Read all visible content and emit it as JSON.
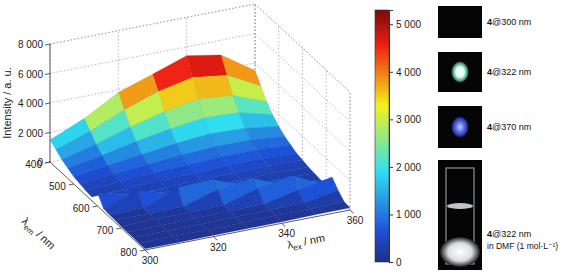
{
  "chart_data": {
    "type": "surface",
    "x_label": "λex / nm",
    "y_label": "λem / nm",
    "z_label": "Intensity / a. u.",
    "x": [
      300,
      310,
      320,
      330,
      340,
      350,
      360
    ],
    "y": [
      400,
      425,
      450,
      475,
      500,
      525,
      550,
      575,
      600,
      625,
      650,
      675,
      700,
      725,
      750,
      775,
      800
    ],
    "values": [
      [
        1500,
        2500,
        3800,
        4600,
        5400,
        5000,
        3500
      ],
      [
        1200,
        2000,
        3000,
        3800,
        4300,
        4000,
        2800
      ],
      [
        900,
        1500,
        2200,
        2800,
        3200,
        3000,
        2100
      ],
      [
        700,
        1100,
        1600,
        2000,
        2300,
        2200,
        1600
      ],
      [
        500,
        800,
        1100,
        1400,
        1600,
        1500,
        1200
      ],
      [
        400,
        600,
        800,
        1000,
        1100,
        1100,
        900
      ],
      [
        300,
        450,
        600,
        700,
        800,
        800,
        700
      ],
      [
        250,
        350,
        450,
        500,
        600,
        600,
        500
      ],
      [
        900,
        300,
        350,
        400,
        450,
        450,
        400
      ],
      [
        200,
        1000,
        300,
        300,
        350,
        350,
        300
      ],
      [
        150,
        200,
        1100,
        1200,
        300,
        300,
        250
      ],
      [
        150,
        150,
        200,
        900,
        1200,
        250,
        200
      ],
      [
        100,
        150,
        150,
        200,
        900,
        1300,
        200
      ],
      [
        100,
        100,
        150,
        150,
        200,
        700,
        1100
      ],
      [
        100,
        100,
        100,
        150,
        150,
        200,
        600
      ],
      [
        80,
        100,
        100,
        100,
        150,
        150,
        200
      ],
      [
        80,
        80,
        100,
        100,
        100,
        150,
        150
      ]
    ],
    "xlim": [
      300,
      360
    ],
    "xticks": [
      300,
      320,
      340,
      360
    ],
    "ylim": [
      400,
      800
    ],
    "yticks": [
      400,
      500,
      600,
      700,
      800
    ],
    "zlim": [
      0,
      8000
    ],
    "zticks": [
      0,
      {
        "value": 2000,
        "label": "2 000"
      },
      {
        "value": 4000,
        "label": "4 000"
      },
      {
        "value": 6000,
        "label": "6 000"
      },
      {
        "value": 8000,
        "label": "8 000"
      }
    ],
    "colorbar": {
      "lim": [
        0,
        5300
      ],
      "ticks": [
        0,
        {
          "value": 1000,
          "label": "1 000"
        },
        {
          "value": 2000,
          "label": "2 000"
        },
        {
          "value": 3000,
          "label": "3 000"
        },
        {
          "value": 4000,
          "label": "4 000"
        },
        {
          "value": 5000,
          "label": "5 000"
        }
      ]
    },
    "grid": true,
    "annotations": [
      [
        "4@300 nm"
      ],
      [
        "4@322 nm"
      ],
      [
        "4@370 nm"
      ],
      [
        "4@322 nm",
        "in DMF (1 mol·L⁻¹)"
      ]
    ]
  }
}
